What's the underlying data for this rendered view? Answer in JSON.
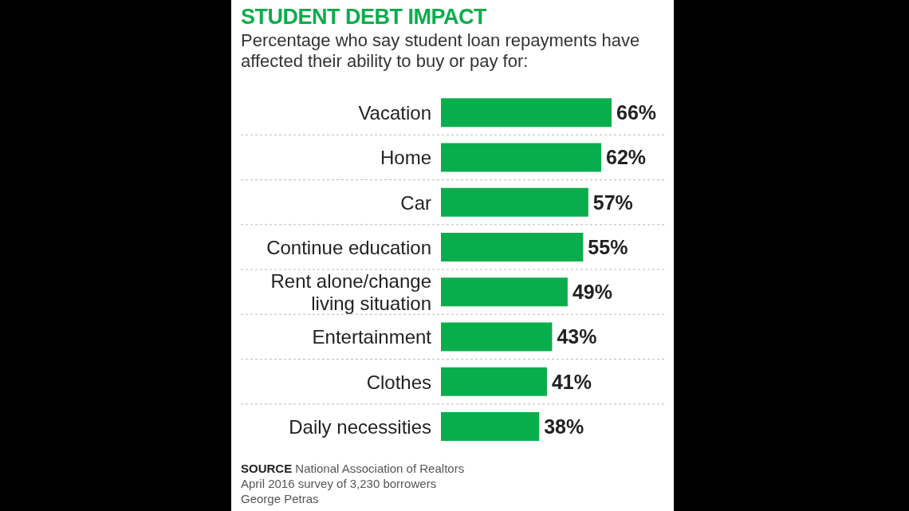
{
  "chart_data": {
    "type": "bar",
    "orientation": "horizontal",
    "title": "STUDENT DEBT IMPACT",
    "subtitle": "Percentage who say student loan repayments have affected their ability to buy or pay for:",
    "categories": [
      "Vacation",
      "Home",
      "Car",
      "Continue education",
      "Rent alone/change living situation",
      "Entertainment",
      "Clothes",
      "Daily necessities"
    ],
    "values": [
      66,
      62,
      57,
      55,
      49,
      43,
      41,
      38
    ],
    "value_labels": [
      "66%",
      "62%",
      "57%",
      "55%",
      "49%",
      "43%",
      "41%",
      "38%"
    ],
    "color": "#0aad4b",
    "annotations": [
      "SOURCE National Association of Realtors",
      "April 2016 survey of 3,230 borrowers",
      "George Petras"
    ]
  }
}
